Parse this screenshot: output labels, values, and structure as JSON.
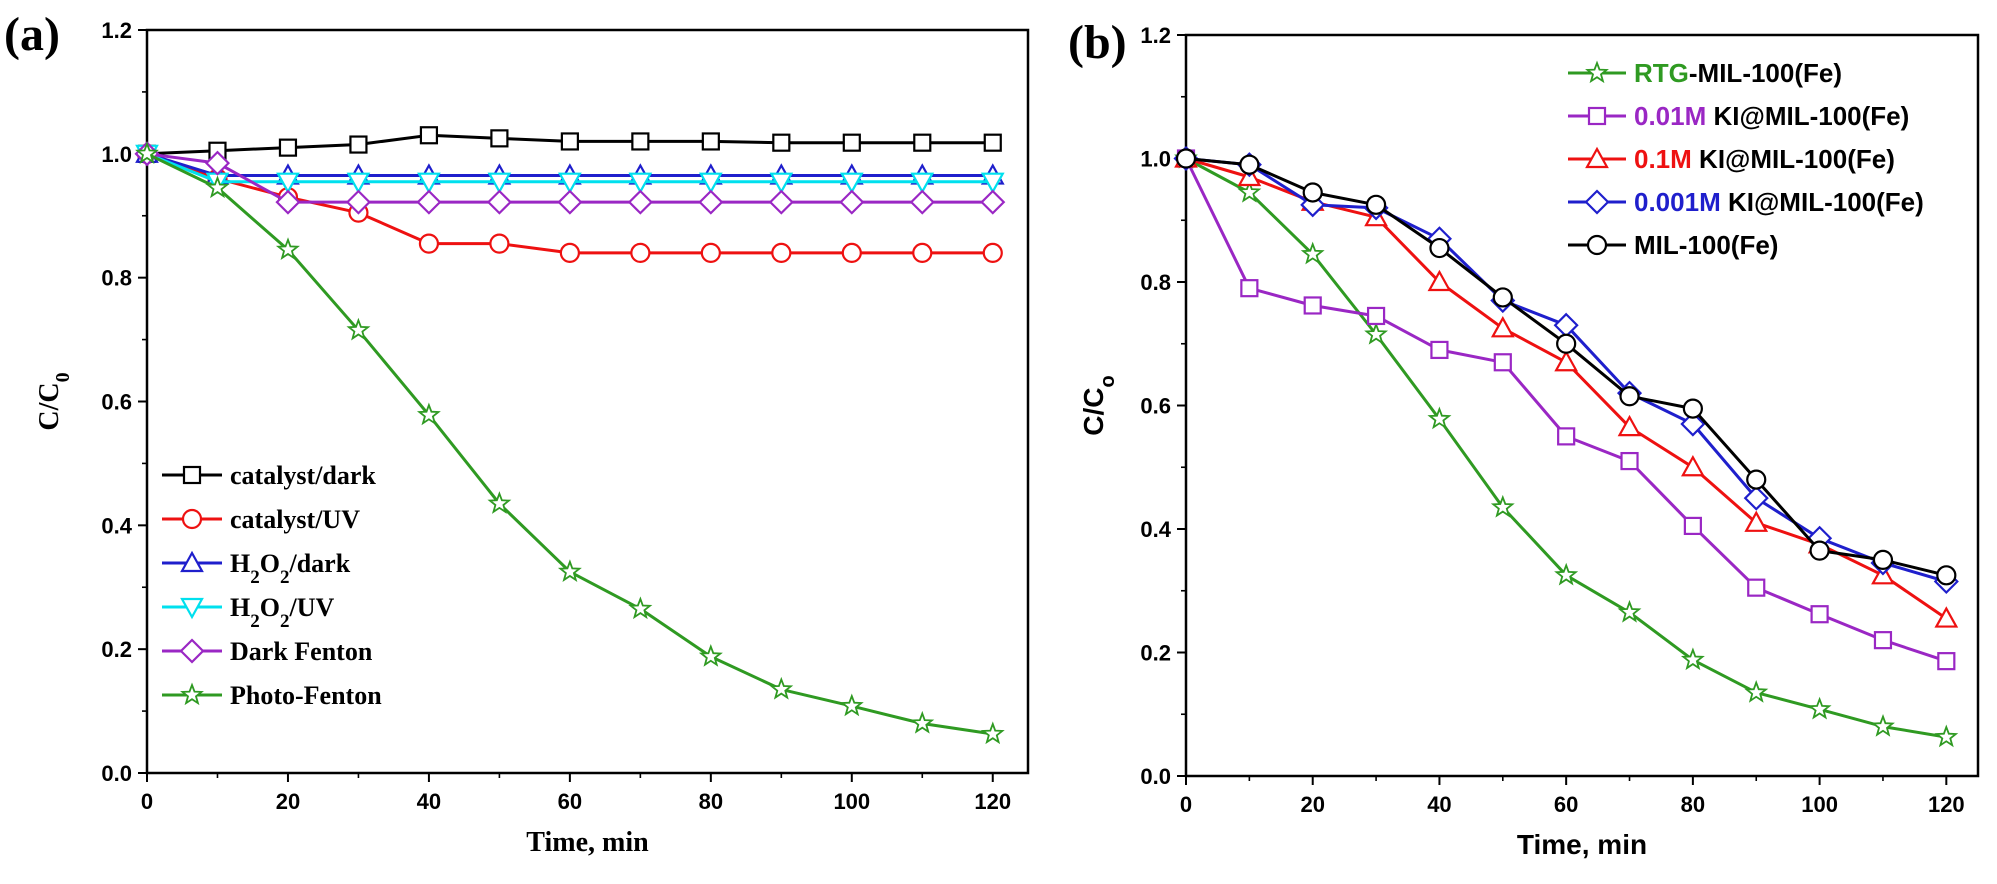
{
  "chart_data": [
    {
      "panel": "(a)",
      "type": "line",
      "xlabel": "Time, min",
      "ylabel": {
        "main": "C/C",
        "sub": "0"
      },
      "xlim": [
        0,
        125
      ],
      "ylim": [
        0,
        1.2
      ],
      "xticks": [
        0,
        20,
        40,
        60,
        80,
        100,
        120
      ],
      "yticks": [
        0.0,
        0.2,
        0.4,
        0.6,
        0.8,
        1.0,
        1.2
      ],
      "legend_position": "middle-left",
      "series": [
        {
          "name": "catalyst/dark",
          "legend": [
            {
              "t": "catalyst/dark"
            }
          ],
          "color": "#000000",
          "marker": "square",
          "x": [
            0,
            10,
            20,
            30,
            40,
            50,
            60,
            70,
            80,
            90,
            100,
            110,
            120
          ],
          "y": [
            1.0,
            1.005,
            1.01,
            1.015,
            1.03,
            1.025,
            1.02,
            1.02,
            1.02,
            1.018,
            1.018,
            1.018,
            1.018
          ]
        },
        {
          "name": "catalyst/UV",
          "legend": [
            {
              "t": "catalyst/UV"
            }
          ],
          "color": "#ee1111",
          "marker": "circle",
          "x": [
            0,
            10,
            20,
            30,
            40,
            50,
            60,
            70,
            80,
            90,
            100,
            110,
            120
          ],
          "y": [
            1.0,
            0.96,
            0.93,
            0.905,
            0.855,
            0.855,
            0.84,
            0.84,
            0.84,
            0.84,
            0.84,
            0.84,
            0.84
          ]
        },
        {
          "name": "H2O2/dark",
          "legend": [
            {
              "t": "H"
            },
            {
              "t": "2",
              "sub": true
            },
            {
              "t": "O"
            },
            {
              "t": "2",
              "sub": true
            },
            {
              "t": "/dark"
            }
          ],
          "color": "#1f1fcc",
          "marker": "triangle-up",
          "x": [
            0,
            10,
            20,
            30,
            40,
            50,
            60,
            70,
            80,
            90,
            100,
            110,
            120
          ],
          "y": [
            1.0,
            0.965,
            0.965,
            0.965,
            0.965,
            0.965,
            0.965,
            0.965,
            0.965,
            0.965,
            0.965,
            0.965,
            0.965
          ]
        },
        {
          "name": "H2O2/UV",
          "legend": [
            {
              "t": "H"
            },
            {
              "t": "2",
              "sub": true
            },
            {
              "t": "O"
            },
            {
              "t": "2",
              "sub": true
            },
            {
              "t": "/UV"
            }
          ],
          "color": "#00e0ee",
          "marker": "triangle-down",
          "x": [
            0,
            10,
            20,
            30,
            40,
            50,
            60,
            70,
            80,
            90,
            100,
            110,
            120
          ],
          "y": [
            1.0,
            0.955,
            0.955,
            0.955,
            0.955,
            0.955,
            0.955,
            0.955,
            0.955,
            0.955,
            0.955,
            0.955,
            0.955
          ]
        },
        {
          "name": "Dark Fenton",
          "legend": [
            {
              "t": " Dark Fenton"
            }
          ],
          "color": "#9a27c4",
          "marker": "diamond",
          "x": [
            0,
            10,
            20,
            30,
            40,
            50,
            60,
            70,
            80,
            90,
            100,
            110,
            120
          ],
          "y": [
            1.0,
            0.985,
            0.922,
            0.922,
            0.922,
            0.922,
            0.922,
            0.922,
            0.922,
            0.922,
            0.922,
            0.922,
            0.922
          ]
        },
        {
          "name": "Photo-Fenton",
          "legend": [
            {
              "t": "Photo-Fenton"
            }
          ],
          "color": "#2f9a22",
          "marker": "star",
          "x": [
            0,
            10,
            20,
            30,
            40,
            50,
            60,
            70,
            80,
            90,
            100,
            110,
            120
          ],
          "y": [
            1.0,
            0.945,
            0.845,
            0.715,
            0.578,
            0.435,
            0.325,
            0.265,
            0.188,
            0.135,
            0.108,
            0.08,
            0.063
          ]
        }
      ]
    },
    {
      "panel": "(b)",
      "type": "line",
      "xlabel": "Time, min",
      "ylabel": {
        "main": "C/C",
        "sub": "o"
      },
      "xlim": [
        0,
        125
      ],
      "ylim": [
        0,
        1.2
      ],
      "xticks": [
        0,
        20,
        40,
        60,
        80,
        100,
        120
      ],
      "yticks": [
        0.0,
        0.2,
        0.4,
        0.6,
        0.8,
        1.0,
        1.2
      ],
      "legend_position": "top-right",
      "series": [
        {
          "name": "RTG-MIL-100(Fe)",
          "legend": [
            {
              "t": "RTG",
              "c": "#2f9a22"
            },
            {
              "t": "-MIL-100(Fe)"
            }
          ],
          "color": "#2f9a22",
          "marker": "star",
          "x": [
            0,
            10,
            20,
            30,
            40,
            50,
            60,
            70,
            80,
            90,
            100,
            110,
            120
          ],
          "y": [
            1.0,
            0.945,
            0.845,
            0.715,
            0.578,
            0.435,
            0.325,
            0.265,
            0.188,
            0.135,
            0.108,
            0.08,
            0.063
          ]
        },
        {
          "name": "0.01M KI@MIL-100(Fe)",
          "legend": [
            {
              "t": "0.01M",
              "c": "#9a27c4"
            },
            {
              "t": " KI@MIL-100(Fe)"
            }
          ],
          "color": "#9a27c4",
          "marker": "square",
          "x": [
            0,
            10,
            20,
            30,
            40,
            50,
            60,
            70,
            80,
            90,
            100,
            110,
            120
          ],
          "y": [
            1.0,
            0.79,
            0.762,
            0.745,
            0.69,
            0.67,
            0.55,
            0.51,
            0.405,
            0.305,
            0.262,
            0.22,
            0.186
          ]
        },
        {
          "name": "0.1M KI@MIL-100(Fe)",
          "legend": [
            {
              "t": "0.1M",
              "c": "#ee1111"
            },
            {
              "t": " KI@MIL-100(Fe)"
            }
          ],
          "color": "#ee1111",
          "marker": "triangle-up",
          "x": [
            0,
            10,
            20,
            30,
            40,
            50,
            60,
            70,
            80,
            90,
            100,
            110,
            120
          ],
          "y": [
            1.0,
            0.97,
            0.93,
            0.905,
            0.8,
            0.725,
            0.67,
            0.565,
            0.5,
            0.41,
            0.375,
            0.325,
            0.255
          ]
        },
        {
          "name": "0.001M KI@MIL-100(Fe)",
          "legend": [
            {
              "t": " 0.001M",
              "c": "#1f1fcc"
            },
            {
              "t": " KI@MIL-100(Fe)"
            }
          ],
          "color": "#1f1fcc",
          "marker": "diamond",
          "x": [
            0,
            10,
            20,
            30,
            40,
            50,
            60,
            70,
            80,
            90,
            100,
            110,
            120
          ],
          "y": [
            1.0,
            0.99,
            0.925,
            0.92,
            0.87,
            0.77,
            0.73,
            0.62,
            0.57,
            0.45,
            0.385,
            0.345,
            0.315
          ]
        },
        {
          "name": "MIL-100(Fe)",
          "legend": [
            {
              "t": "MIL-100(Fe)"
            }
          ],
          "color": "#000000",
          "marker": "circle",
          "x": [
            0,
            10,
            20,
            30,
            40,
            50,
            60,
            70,
            80,
            90,
            100,
            110,
            120
          ],
          "y": [
            1.0,
            0.99,
            0.945,
            0.925,
            0.855,
            0.775,
            0.7,
            0.615,
            0.595,
            0.48,
            0.365,
            0.35,
            0.325
          ]
        }
      ]
    }
  ]
}
